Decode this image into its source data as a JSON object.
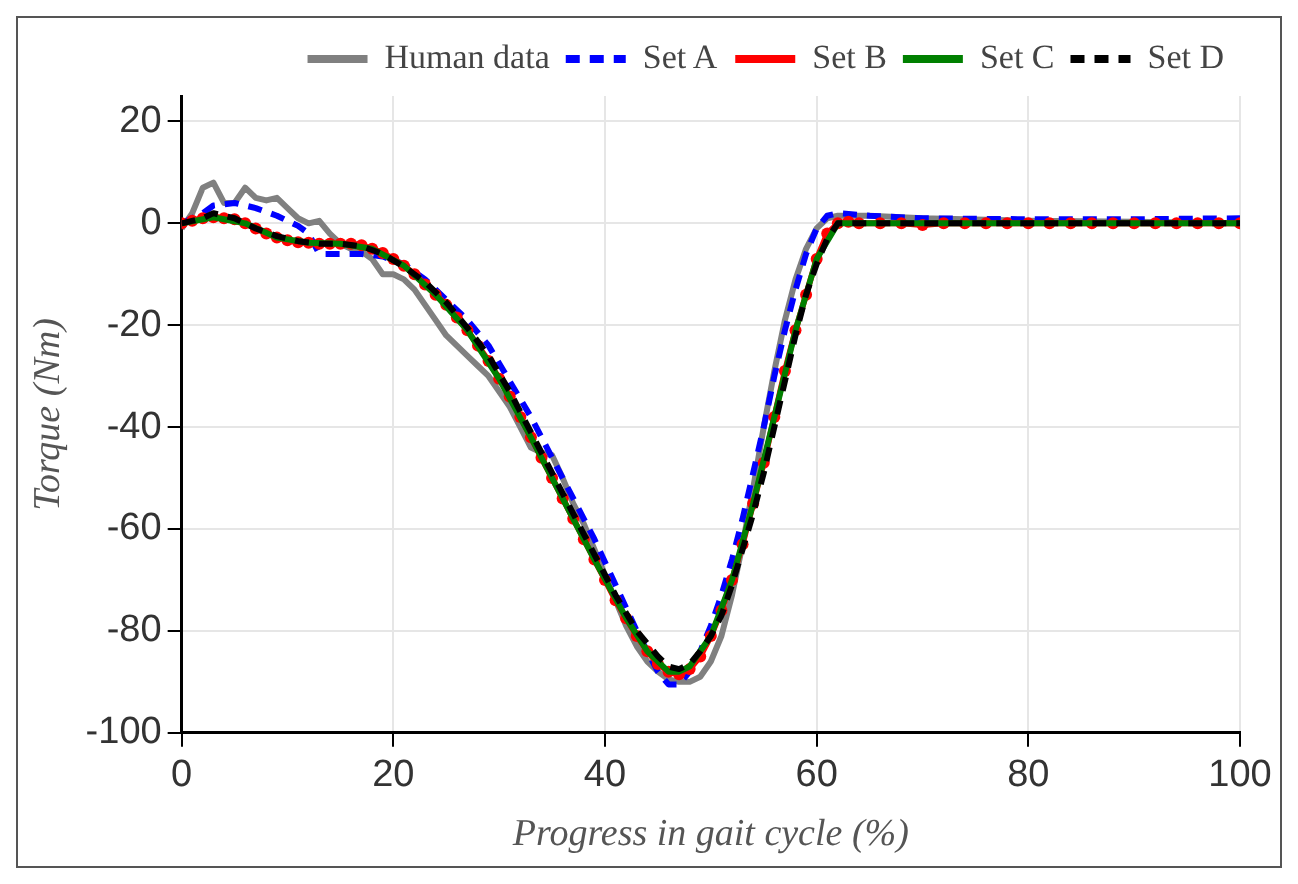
{
  "chart_data": {
    "type": "line",
    "xlabel": "Progress in gait cycle (%)",
    "ylabel": "Torque (Nm)",
    "xlim": [
      0,
      100
    ],
    "xticks": [
      0,
      20,
      40,
      60,
      80,
      100
    ],
    "ylim": [
      -100,
      25
    ],
    "yticks": [
      -100,
      -80,
      -60,
      -40,
      -20,
      0,
      20
    ],
    "grid": true,
    "legend": "top right",
    "series": [
      {
        "name": "Human data",
        "color": "#808080",
        "line_style": "solid",
        "marker": "none",
        "x": [
          0,
          1,
          2,
          3,
          4,
          5,
          6,
          7,
          8,
          9,
          10,
          11,
          12,
          13,
          14,
          15,
          16,
          17,
          18,
          19,
          20,
          21,
          22,
          23,
          24,
          25,
          26,
          27,
          28,
          29,
          30,
          31,
          32,
          33,
          34,
          35,
          36,
          37,
          38,
          39,
          40,
          41,
          42,
          43,
          44,
          45,
          46,
          47,
          48,
          49,
          50,
          51,
          52,
          53,
          54,
          55,
          56,
          57,
          58,
          59,
          60,
          61,
          62,
          65,
          70,
          80,
          90,
          100
        ],
        "values": [
          -1,
          2,
          7,
          8,
          4,
          4,
          7,
          5,
          4.5,
          5,
          3,
          1,
          0,
          0.5,
          -2,
          -4,
          -5,
          -5.5,
          -7,
          -10,
          -10,
          -11,
          -13,
          -16,
          -19,
          -22,
          -24,
          -26,
          -28,
          -30,
          -33,
          -36,
          -40,
          -44,
          -45,
          -45.5,
          -50,
          -55,
          -59,
          -64,
          -69,
          -74,
          -79,
          -83,
          -86,
          -88,
          -89.5,
          -90,
          -90,
          -89,
          -86,
          -81,
          -73,
          -63,
          -52,
          -40,
          -29,
          -19,
          -11,
          -5,
          -1,
          1,
          1.5,
          1.5,
          1,
          0.5,
          0.3,
          0
        ]
      },
      {
        "name": "Set A",
        "color": "#0000ff",
        "line_style": "dashed",
        "marker": "none",
        "x": [
          0,
          2,
          3,
          5,
          7,
          9,
          11,
          12,
          13,
          15,
          17,
          19,
          21,
          23,
          25,
          27,
          29,
          31,
          33,
          35,
          37,
          39,
          41,
          43,
          44,
          45,
          46,
          47,
          48,
          49,
          50,
          51,
          52,
          53,
          54,
          55,
          56,
          57,
          58,
          59,
          60,
          61,
          62,
          65,
          70,
          80,
          90,
          100
        ],
        "values": [
          0,
          2,
          3.5,
          4,
          3,
          1.5,
          -0.5,
          -2,
          -6,
          -6,
          -6,
          -6.5,
          -8,
          -11,
          -15,
          -19,
          -24,
          -31,
          -38,
          -46,
          -54,
          -62,
          -71,
          -80,
          -84,
          -88,
          -90.5,
          -90.5,
          -88,
          -84,
          -79,
          -73,
          -66,
          -58,
          -49,
          -40,
          -30,
          -21,
          -13,
          -6,
          -1,
          1.5,
          2,
          1.5,
          1,
          0.8,
          0.8,
          1
        ]
      },
      {
        "name": "Set B",
        "color": "#ff0000",
        "line_style": "solid",
        "marker": "circle",
        "x": [
          0,
          1,
          2,
          3,
          4,
          5,
          6,
          7,
          8,
          9,
          10,
          11,
          12,
          13,
          14,
          15,
          16,
          17,
          18,
          19,
          20,
          21,
          22,
          23,
          24,
          25,
          26,
          27,
          28,
          29,
          30,
          31,
          32,
          33,
          34,
          35,
          36,
          37,
          38,
          39,
          40,
          41,
          42,
          43,
          44,
          45,
          46,
          47,
          48,
          49,
          50,
          51,
          52,
          53,
          54,
          55,
          56,
          57,
          58,
          59,
          60,
          61,
          62,
          63,
          64,
          66,
          68,
          70,
          72,
          74,
          76,
          78,
          80,
          82,
          84,
          86,
          88,
          90,
          92,
          94,
          96,
          98,
          100
        ],
        "values": [
          0,
          0.5,
          1,
          1.2,
          1,
          0.8,
          0,
          -1,
          -2,
          -2.8,
          -3.3,
          -3.7,
          -3.8,
          -4,
          -4,
          -4,
          -4,
          -4.3,
          -5,
          -5.8,
          -7,
          -8.3,
          -10,
          -12,
          -14,
          -16,
          -18.5,
          -21,
          -24,
          -27,
          -30.5,
          -34,
          -38,
          -42,
          -46,
          -50,
          -54,
          -58,
          -62,
          -66,
          -70,
          -74,
          -77.5,
          -81,
          -84,
          -86.5,
          -88,
          -88.5,
          -87.5,
          -85,
          -81,
          -76,
          -70,
          -63,
          -55,
          -47,
          -38,
          -29,
          -21,
          -14,
          -7,
          -2,
          0,
          0.3,
          0,
          0,
          0,
          -0.3,
          0,
          0,
          0,
          0,
          0,
          0,
          0,
          0,
          0,
          0,
          0,
          0,
          0,
          0,
          0
        ]
      },
      {
        "name": "Set C",
        "color": "#008000",
        "line_style": "solid",
        "marker": "none",
        "x": [
          0,
          3,
          6,
          9,
          12,
          15,
          18,
          21,
          24,
          27,
          30,
          33,
          36,
          39,
          42,
          44,
          46,
          47,
          48,
          50,
          52,
          54,
          56,
          58,
          60,
          62,
          65,
          70,
          80,
          90,
          100
        ],
        "values": [
          0,
          1.2,
          0,
          -2.8,
          -3.8,
          -4,
          -5,
          -8.3,
          -14,
          -21,
          -30.5,
          -42,
          -54,
          -66,
          -77.5,
          -84,
          -88,
          -88,
          -87,
          -81,
          -70,
          -55,
          -38,
          -21,
          -7,
          0,
          0,
          0,
          0,
          0,
          0
        ]
      },
      {
        "name": "Set D",
        "color": "#000000",
        "line_style": "dashed",
        "marker": "none",
        "x": [
          0,
          2,
          3,
          5,
          7,
          9,
          11,
          13,
          15,
          17,
          19,
          21,
          23,
          25,
          27,
          29,
          31,
          33,
          35,
          37,
          39,
          41,
          43,
          45,
          46,
          47,
          48,
          49,
          50,
          51,
          52,
          53,
          54,
          55,
          56,
          57,
          58,
          59,
          60,
          61,
          62,
          65,
          100
        ],
        "values": [
          0,
          1,
          2,
          1,
          -1,
          -2.5,
          -3.5,
          -4,
          -4,
          -4.5,
          -6,
          -8.5,
          -11.5,
          -15.5,
          -20.5,
          -26,
          -33,
          -41,
          -49,
          -57,
          -65,
          -73,
          -80,
          -85,
          -87,
          -87.5,
          -86.5,
          -84,
          -81,
          -77,
          -71,
          -64,
          -57,
          -49,
          -40,
          -31,
          -22,
          -14,
          -8,
          -3,
          0,
          0,
          0
        ]
      }
    ]
  }
}
